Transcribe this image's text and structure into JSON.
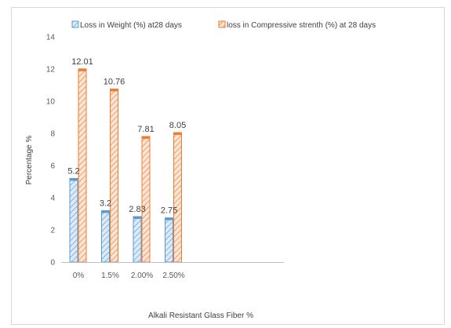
{
  "chart_data": {
    "type": "bar",
    "categories": [
      "0%",
      "1.5%",
      "2.00%",
      "2.50%"
    ],
    "series": [
      {
        "name": "Loss in Weight (%) at28 days",
        "values": [
          5.2,
          3.2,
          2.83,
          2.75
        ],
        "labels": [
          "5.2",
          "3.2",
          "2.83",
          "2.75"
        ],
        "color": "#5b9bd5",
        "fill": "#deebf7"
      },
      {
        "name": "loss in Compressive strenth (%) at 28 days",
        "values": [
          12.01,
          10.76,
          7.81,
          8.05
        ],
        "labels": [
          "12.01",
          "10.76",
          "7.81",
          "8.05"
        ],
        "color": "#ed7d31",
        "fill": "#fbe5d6"
      }
    ],
    "xlabel": "Alkali Resistant Glass Fiber %",
    "ylabel": "Percentage %",
    "ylim": [
      0,
      14
    ],
    "yticks": [
      "0",
      "2",
      "4",
      "6",
      "8",
      "10",
      "12",
      "14"
    ],
    "grid": false,
    "legend": "top",
    "bar_style": "hatched"
  }
}
